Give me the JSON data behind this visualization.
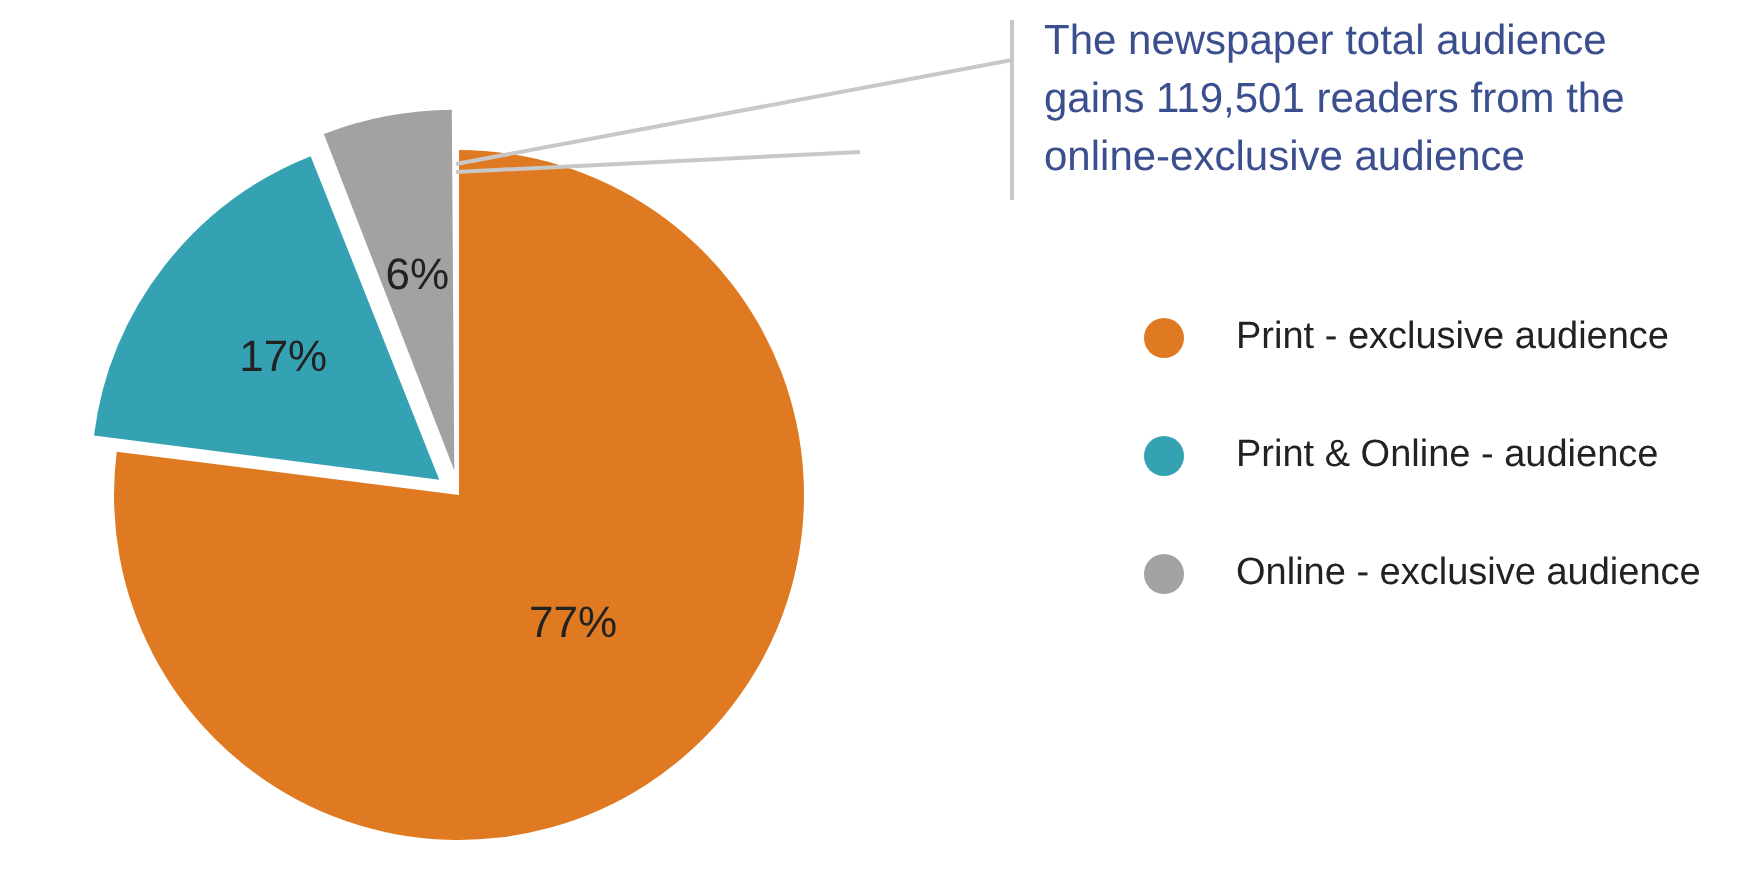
{
  "chart_data": {
    "type": "pie",
    "categories": [
      "Print - exclusive audience",
      "Print & Online - audience",
      "Online - exclusive audience"
    ],
    "values": [
      77,
      17,
      6
    ],
    "value_labels": [
      "77%",
      "17%",
      "6%"
    ],
    "colors": [
      "#e07a22",
      "#35a2b4",
      "#a2a2a2"
    ],
    "legend": "right",
    "annotations": [
      "The newspaper total audience gains 119,501 readers from the online-exclusive audience"
    ]
  }
}
